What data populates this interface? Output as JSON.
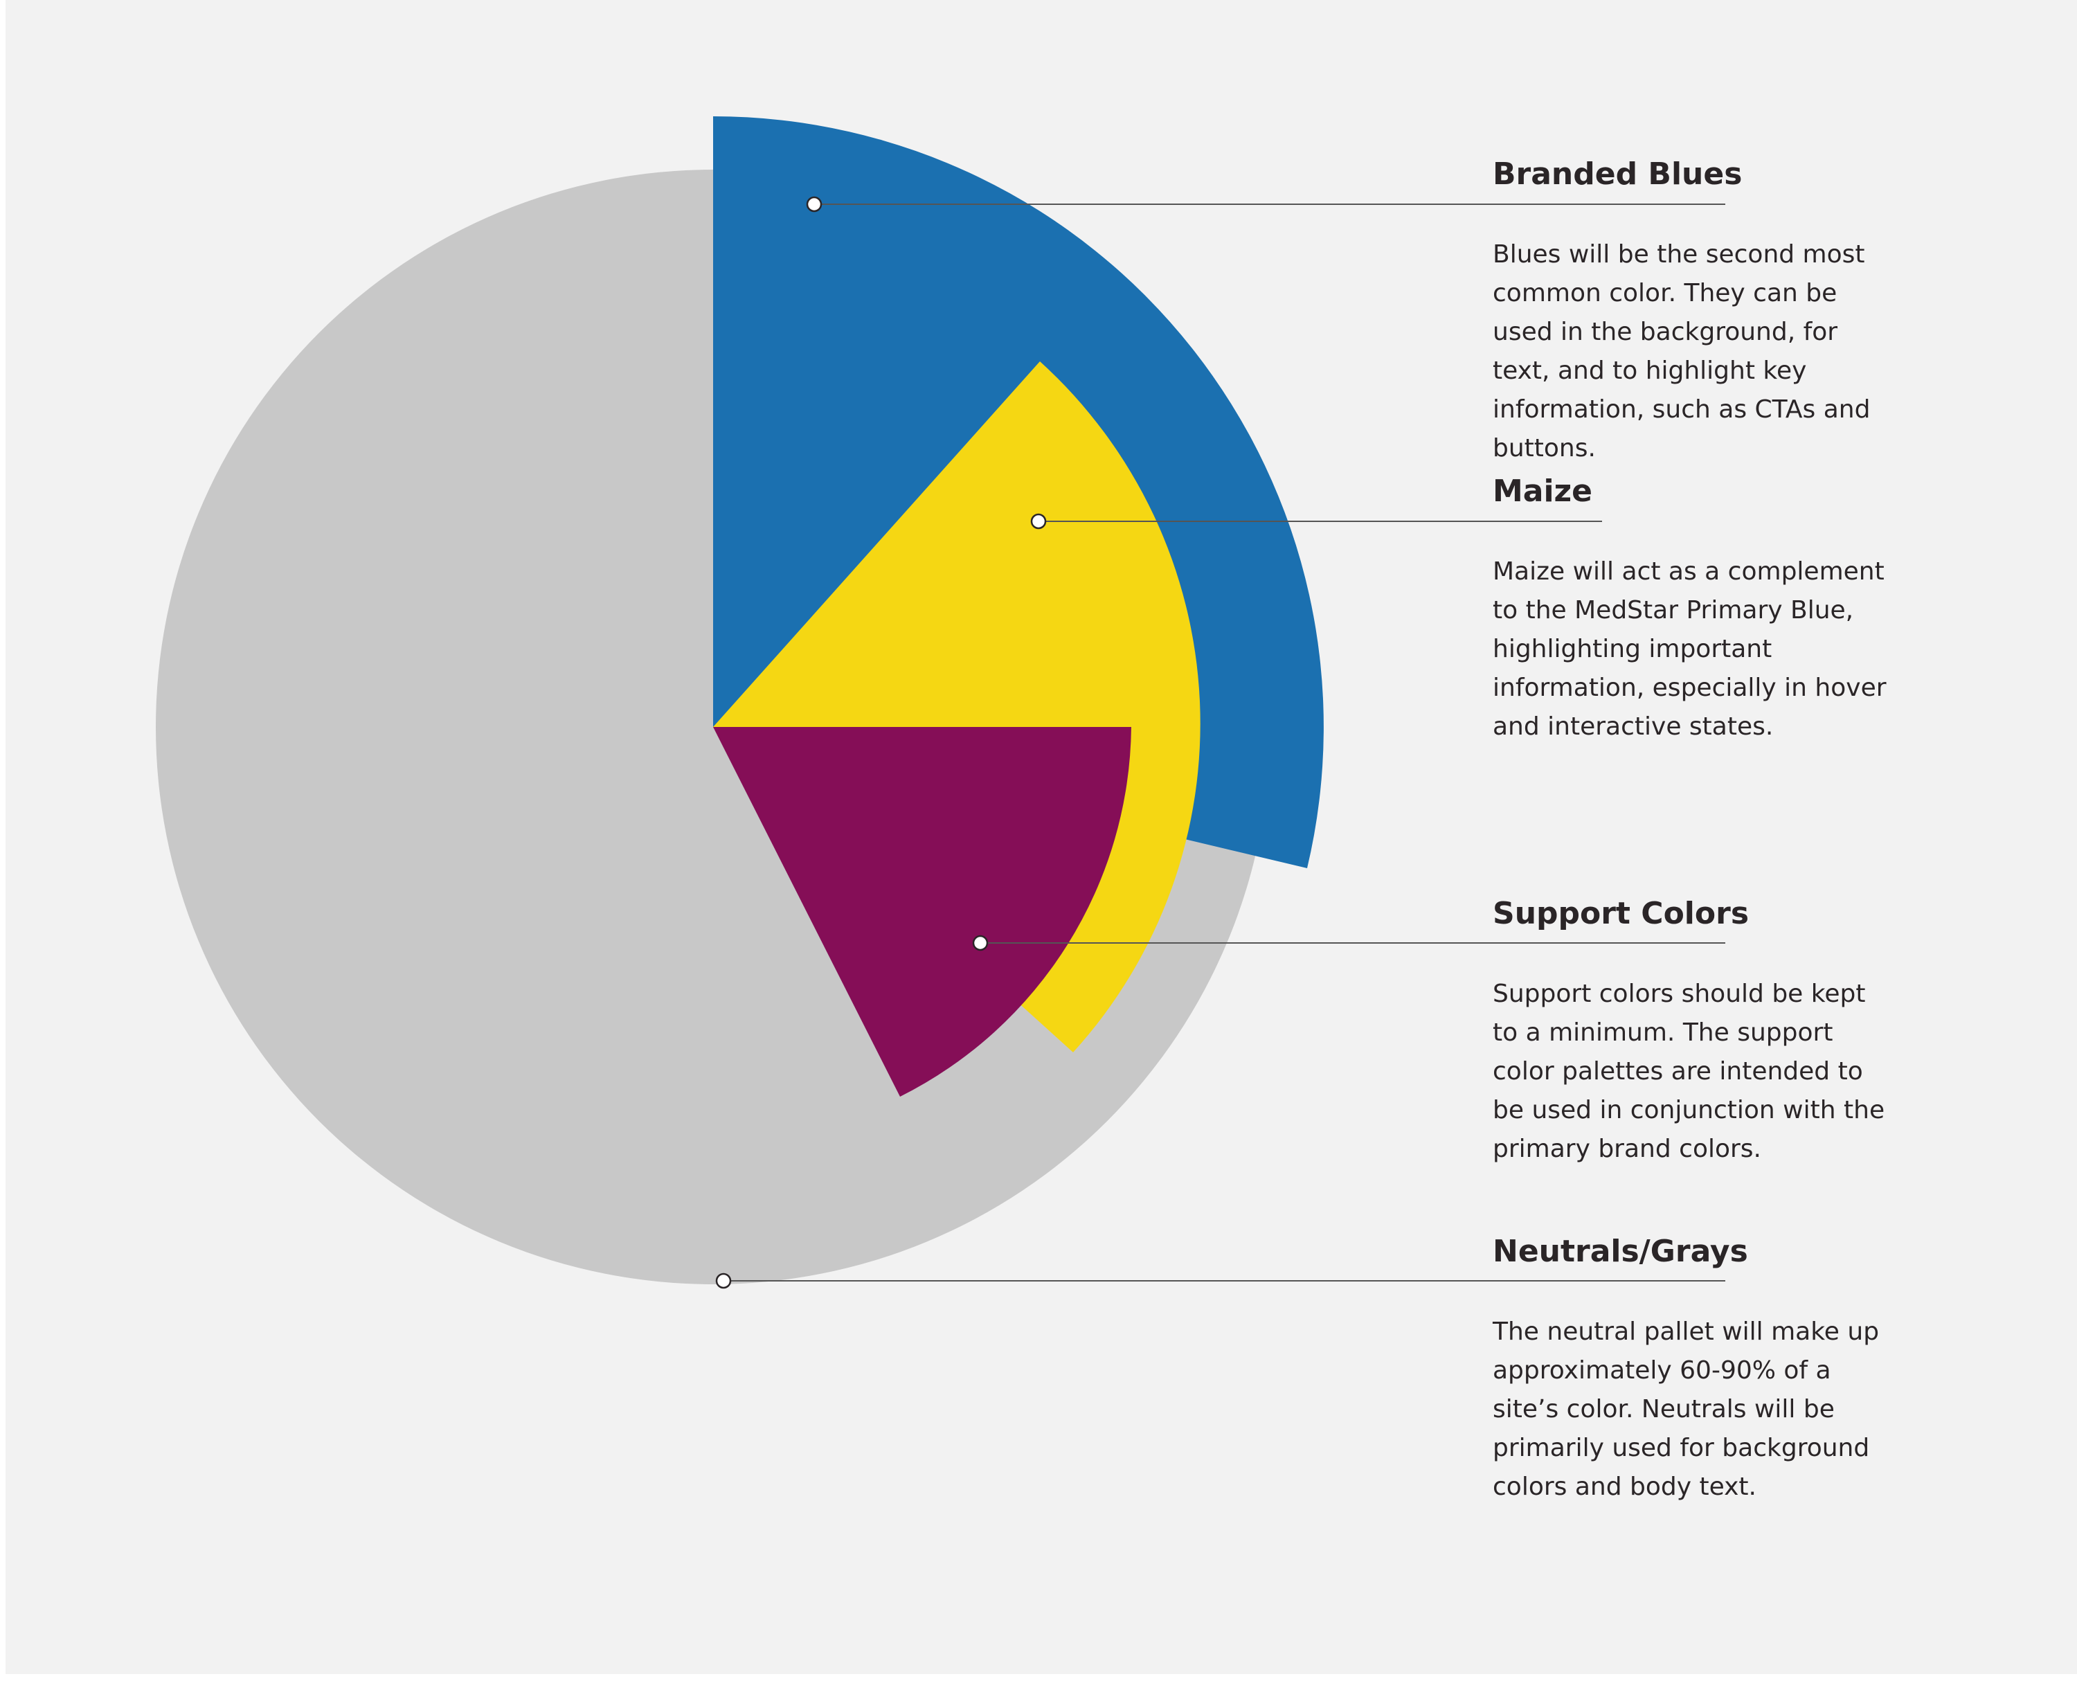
{
  "sections": [
    {
      "title": "Branded Blues",
      "description": "Blues will be the second most common color. They can be used in the background, for text, and to highlight key information, such as CTAs and buttons.",
      "color": "#1b70b0"
    },
    {
      "title": "Maize",
      "description": "Maize will act as a complement to the MedStar Primary Blue, highlighting important information, especially in hover and interactive states.",
      "color": "#f5d713"
    },
    {
      "title": "Support Colors",
      "description": "Support colors should be kept to a minimum. The support color palettes are intended to be used in conjunction with the primary brand colors.",
      "color": "#850e57"
    },
    {
      "title": "Neutrals/Grays",
      "description": "The neutral pallet will make up approximately 60-90% of a site’s color. Neutrals will be primarily used for background colors and body text.",
      "color": "#c8c8c8"
    }
  ],
  "palette": {
    "background": "#f2f2f2",
    "text": "#2a2527",
    "leader_line": "#555555"
  }
}
